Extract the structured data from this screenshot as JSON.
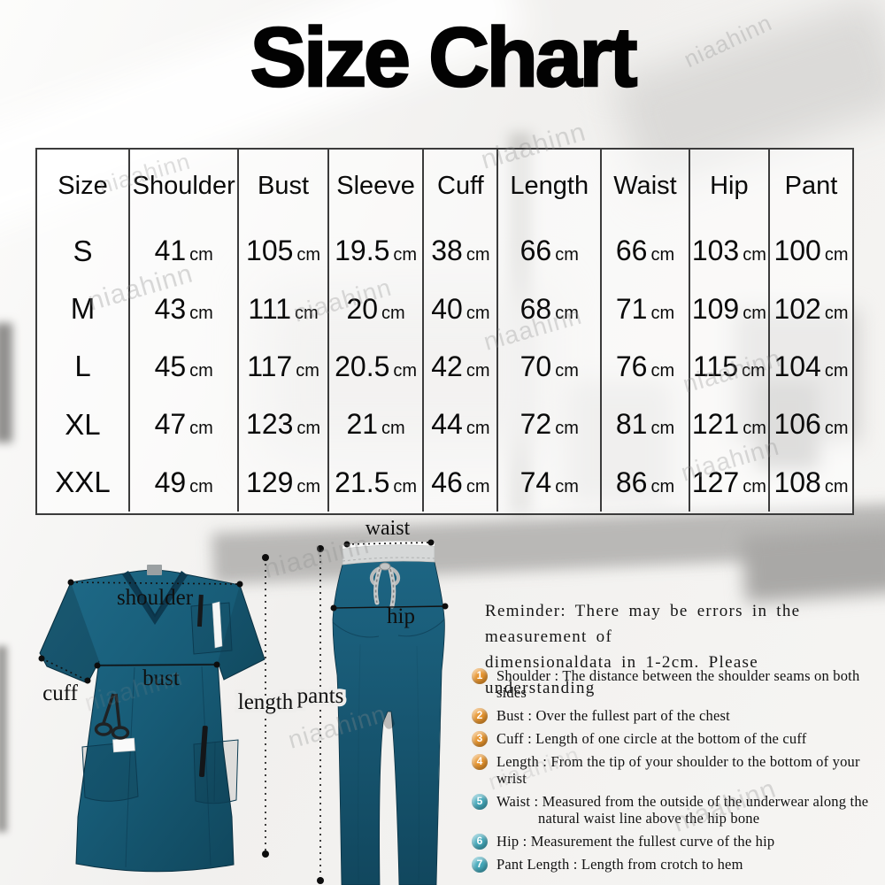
{
  "watermark_text": "niaahinn",
  "chart_data": {
    "type": "table",
    "title": "Size Chart",
    "columns": [
      "Size",
      "Shoulder",
      "Bust",
      "Sleeve",
      "Cuff",
      "Length",
      "Waist",
      "Hip",
      "Pant"
    ],
    "unit": "cm",
    "rows": [
      {
        "size": "S",
        "values": [
          41,
          105,
          19.5,
          38,
          66,
          66,
          103,
          100
        ]
      },
      {
        "size": "M",
        "values": [
          43,
          111,
          20,
          40,
          68,
          71,
          109,
          102
        ]
      },
      {
        "size": "L",
        "values": [
          45,
          117,
          20.5,
          42,
          70,
          76,
          115,
          104
        ]
      },
      {
        "size": "XL",
        "values": [
          47,
          123,
          21,
          44,
          72,
          81,
          121,
          106
        ]
      },
      {
        "size": "XXL",
        "values": [
          49,
          129,
          21.5,
          46,
          74,
          86,
          127,
          108
        ]
      }
    ]
  },
  "diagram": {
    "labels": {
      "shoulder": "shoulder",
      "cuff": "cuff",
      "bust": "bust",
      "length": "length",
      "waist": "waist",
      "hip": "hip",
      "pants": "pants"
    },
    "colors": {
      "scrub_teal": "#175b76"
    }
  },
  "reminder": {
    "lines": [
      "Reminder: There may be errors in the measurement of",
      "dimensionaldata in 1-2cm. Please understanding"
    ]
  },
  "notes": {
    "items": [
      {
        "num": "1",
        "badge_color": "#e8952e",
        "text": "Shoulder : The distance between the shoulder seams on both sides"
      },
      {
        "num": "2",
        "badge_color": "#e8952e",
        "text": "Bust : Over the fullest part of the chest"
      },
      {
        "num": "3",
        "badge_color": "#e8952e",
        "text": "Cuff : Length of one circle at the bottom of the cuff"
      },
      {
        "num": "4",
        "badge_color": "#e8952e",
        "text": "Length : From the tip of your shoulder to the bottom of your wrist"
      },
      {
        "num": "5",
        "badge_color": "#45aabc",
        "text": "Waist : Measured from the outside of the underwear along the",
        "text2": "natural waist line above the hip bone"
      },
      {
        "num": "6",
        "badge_color": "#45aabc",
        "text": "Hip : Measurement the fullest curve of the hip"
      },
      {
        "num": "7",
        "badge_color": "#45aabc",
        "text": "Pant Length : Length from crotch to hem"
      }
    ]
  }
}
